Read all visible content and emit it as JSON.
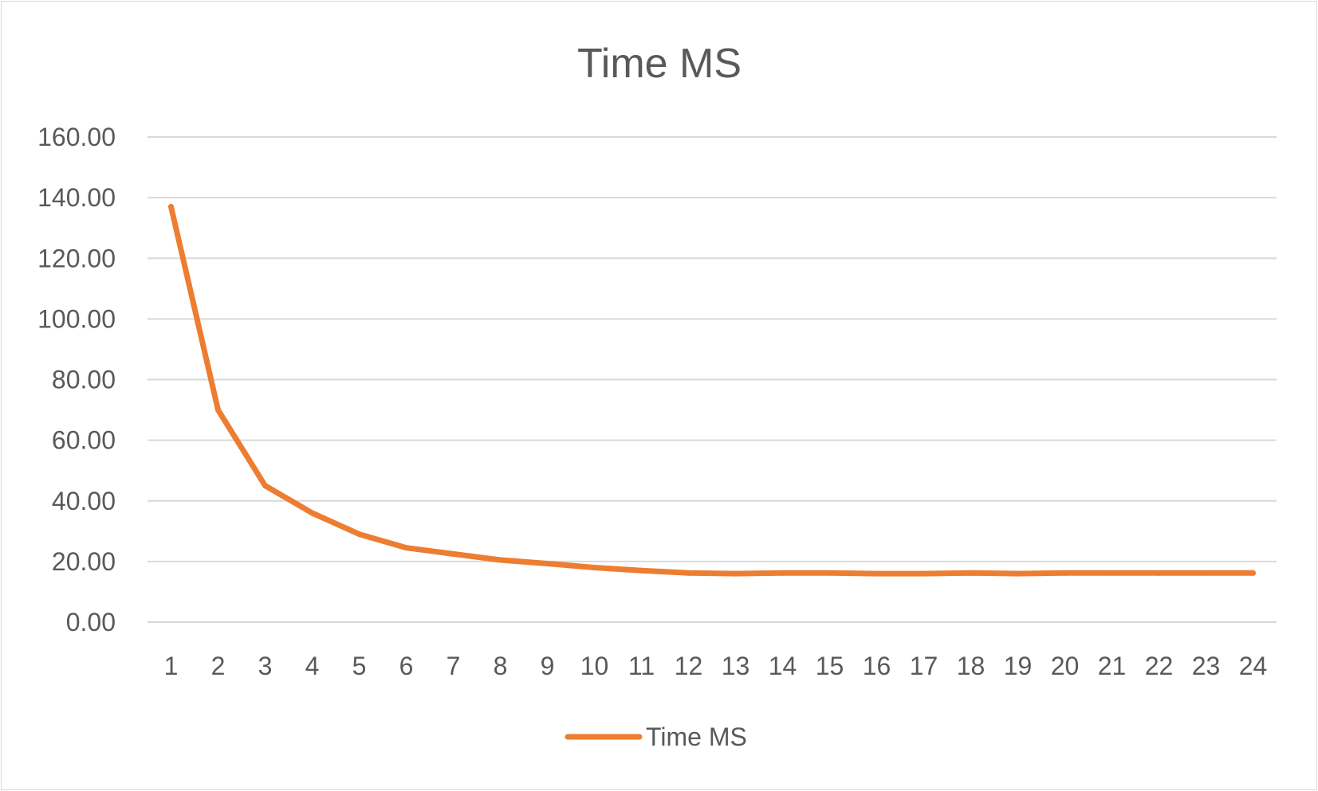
{
  "colors": {
    "series": "#ED7D31",
    "grid": "#D9D9D9",
    "text": "#595959"
  },
  "chart_data": {
    "type": "line",
    "title": "Time MS",
    "xlabel": "",
    "ylabel": "",
    "categories": [
      "1",
      "2",
      "3",
      "4",
      "5",
      "6",
      "7",
      "8",
      "9",
      "10",
      "11",
      "12",
      "13",
      "14",
      "15",
      "16",
      "17",
      "18",
      "19",
      "20",
      "21",
      "22",
      "23",
      "24"
    ],
    "series": [
      {
        "name": "Time MS",
        "values": [
          137.0,
          70.0,
          45.0,
          36.0,
          29.0,
          24.5,
          22.5,
          20.5,
          19.3,
          18.0,
          17.0,
          16.2,
          16.0,
          16.2,
          16.2,
          16.0,
          16.0,
          16.2,
          16.0,
          16.2,
          16.2,
          16.2,
          16.2,
          16.2
        ]
      }
    ],
    "ylim": [
      0,
      160
    ],
    "yticks": [
      "0.00",
      "20.00",
      "40.00",
      "60.00",
      "80.00",
      "100.00",
      "120.00",
      "140.00",
      "160.00"
    ],
    "grid": true,
    "legend_position": "bottom"
  }
}
